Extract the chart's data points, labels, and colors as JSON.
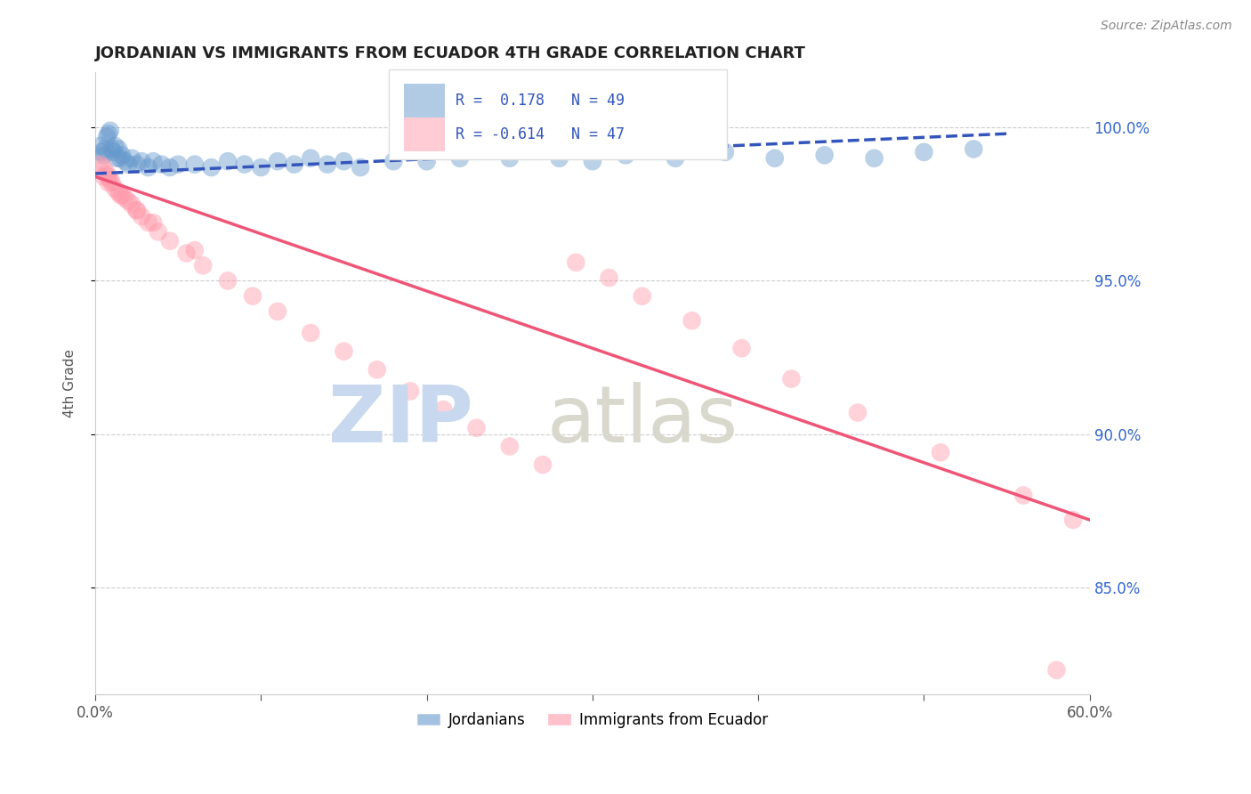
{
  "title": "JORDANIAN VS IMMIGRANTS FROM ECUADOR 4TH GRADE CORRELATION CHART",
  "source": "Source: ZipAtlas.com",
  "ylabel": "4th Grade",
  "x_min": 0.0,
  "x_max": 0.6,
  "y_min": 0.815,
  "y_max": 1.018,
  "x_ticks": [
    0.0,
    0.1,
    0.2,
    0.3,
    0.4,
    0.5,
    0.6
  ],
  "x_tick_labels": [
    "0.0%",
    "",
    "",
    "",
    "",
    "",
    "60.0%"
  ],
  "y_ticks": [
    0.85,
    0.9,
    0.95,
    1.0
  ],
  "y_tick_labels": [
    "85.0%",
    "90.0%",
    "95.0%",
    "100.0%"
  ],
  "legend_r1": "R =  0.178",
  "legend_n1": "N = 49",
  "legend_r2": "R = -0.614",
  "legend_n2": "N = 47",
  "legend_label1": "Jordanians",
  "legend_label2": "Immigrants from Ecuador",
  "blue_color": "#6699CC",
  "pink_color": "#FF99AA",
  "blue_line_color": "#3355BB",
  "pink_line_color": "#EE5577",
  "right_axis_color": "#3366CC",
  "bg_color": "#FFFFFF",
  "grid_color": "#CCCCCC",
  "blue_scatter_x": [
    0.003,
    0.004,
    0.005,
    0.006,
    0.007,
    0.008,
    0.009,
    0.01,
    0.011,
    0.012,
    0.013,
    0.014,
    0.015,
    0.016,
    0.018,
    0.02,
    0.022,
    0.025,
    0.028,
    0.032,
    0.035,
    0.04,
    0.045,
    0.05,
    0.06,
    0.07,
    0.08,
    0.09,
    0.1,
    0.11,
    0.12,
    0.13,
    0.14,
    0.15,
    0.16,
    0.18,
    0.2,
    0.22,
    0.25,
    0.28,
    0.3,
    0.32,
    0.35,
    0.38,
    0.41,
    0.44,
    0.47,
    0.5,
    0.53
  ],
  "blue_scatter_y": [
    0.994,
    0.992,
    0.991,
    0.993,
    0.997,
    0.998,
    0.999,
    0.993,
    0.992,
    0.994,
    0.99,
    0.993,
    0.99,
    0.991,
    0.989,
    0.988,
    0.99,
    0.988,
    0.989,
    0.987,
    0.989,
    0.988,
    0.987,
    0.988,
    0.988,
    0.987,
    0.989,
    0.988,
    0.987,
    0.989,
    0.988,
    0.99,
    0.988,
    0.989,
    0.987,
    0.989,
    0.989,
    0.99,
    0.99,
    0.99,
    0.989,
    0.991,
    0.99,
    0.992,
    0.99,
    0.991,
    0.99,
    0.992,
    0.993
  ],
  "pink_scatter_x": [
    0.003,
    0.005,
    0.007,
    0.008,
    0.009,
    0.01,
    0.012,
    0.014,
    0.016,
    0.018,
    0.02,
    0.022,
    0.025,
    0.028,
    0.032,
    0.038,
    0.045,
    0.055,
    0.065,
    0.08,
    0.095,
    0.11,
    0.13,
    0.15,
    0.17,
    0.19,
    0.21,
    0.23,
    0.25,
    0.27,
    0.29,
    0.31,
    0.33,
    0.36,
    0.39,
    0.42,
    0.46,
    0.51,
    0.56,
    0.59,
    0.005,
    0.008,
    0.015,
    0.025,
    0.035,
    0.06,
    0.58
  ],
  "pink_scatter_y": [
    0.988,
    0.987,
    0.985,
    0.984,
    0.983,
    0.982,
    0.98,
    0.979,
    0.978,
    0.977,
    0.976,
    0.975,
    0.973,
    0.971,
    0.969,
    0.966,
    0.963,
    0.959,
    0.955,
    0.95,
    0.945,
    0.94,
    0.933,
    0.927,
    0.921,
    0.914,
    0.908,
    0.902,
    0.896,
    0.89,
    0.956,
    0.951,
    0.945,
    0.937,
    0.928,
    0.918,
    0.907,
    0.894,
    0.88,
    0.872,
    0.984,
    0.982,
    0.978,
    0.973,
    0.969,
    0.96,
    0.823
  ],
  "blue_line_x": [
    0.0,
    0.55
  ],
  "blue_line_y": [
    0.985,
    0.998
  ],
  "pink_line_x": [
    0.0,
    0.6
  ],
  "pink_line_y": [
    0.984,
    0.872
  ]
}
